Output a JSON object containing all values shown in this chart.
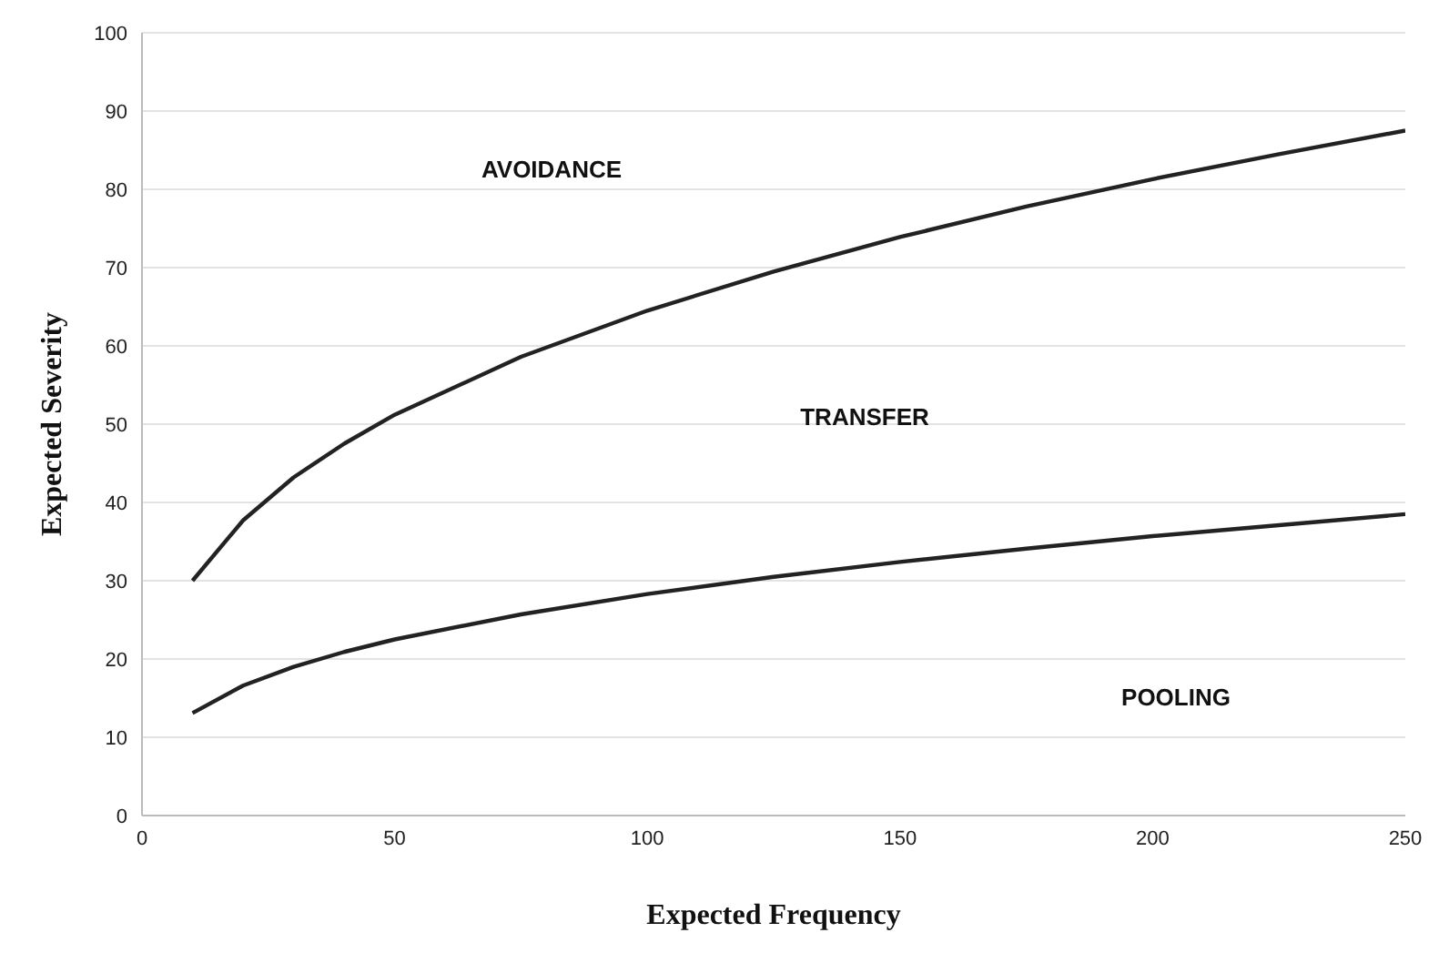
{
  "chart_data": {
    "type": "line",
    "xlabel": "Expected Frequency",
    "ylabel": "Expected Severity",
    "x": [
      10,
      20,
      30,
      40,
      50,
      75,
      100,
      125,
      150,
      175,
      200,
      225,
      250
    ],
    "series": [
      {
        "color": "#222222",
        "values": [
          30,
          37.7,
          43.2,
          47.5,
          51.2,
          58.6,
          64.5,
          69.5,
          73.9,
          77.8,
          81.3,
          84.5,
          87.5
        ]
      },
      {
        "color": "#222222",
        "values": [
          13.1,
          16.6,
          19,
          20.9,
          22.5,
          25.7,
          28.3,
          30.5,
          32.4,
          34.1,
          35.7,
          37.1,
          38.5
        ]
      }
    ],
    "xlim": [
      0,
      250
    ],
    "xticks": [
      0,
      50,
      100,
      150,
      200,
      250
    ],
    "ylim": [
      0,
      100
    ],
    "yticks": [
      0,
      10,
      20,
      30,
      40,
      50,
      60,
      70,
      80,
      90,
      100
    ],
    "grid": "y",
    "legend": false,
    "marker": "none",
    "line_style": "solid",
    "annotations": [
      "AVOIDANCE",
      "TRANSFER",
      "POOLING"
    ]
  }
}
